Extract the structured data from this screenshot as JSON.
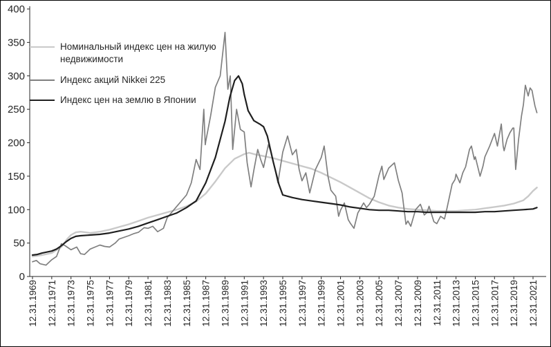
{
  "chart_data": {
    "type": "line",
    "title": "",
    "grid": "off",
    "legend_position": "top-left-inside",
    "axis_color": "#262626",
    "y_axis": {
      "ticks": [
        0,
        50,
        100,
        150,
        200,
        250,
        300,
        350,
        400
      ],
      "range": [
        0,
        400
      ]
    },
    "x_axis": {
      "tick_labels": [
        "12.31.1969",
        "12.31.1971",
        "12.31.1973",
        "12.31.1975",
        "12.31.1977",
        "12.31.1979",
        "12.31.1981",
        "12.31.1983",
        "12.31.1985",
        "12.31.1987",
        "12.31.1989",
        "12.31.1991",
        "12.31.1993",
        "12.31.1995",
        "12.31.1997",
        "12.31.1999",
        "12.31.2001",
        "12.31.2003",
        "12.31.2005",
        "12.31.2007",
        "12.31.2009",
        "12.31.2011",
        "12.31.2013",
        "12.31.2015",
        "12.31.2017",
        "12.31.2019",
        "12.31.2021"
      ],
      "years_between_ticks": 2
    },
    "series": [
      {
        "name": "Номинальный индекс цен на жилую недвижимости",
        "color": "#c9c9c9",
        "width": 2.4,
        "points": [
          [
            0,
            30
          ],
          [
            1,
            32
          ],
          [
            2,
            35
          ],
          [
            3,
            44
          ],
          [
            3.6,
            56
          ],
          [
            4,
            62
          ],
          [
            4.5,
            66
          ],
          [
            5,
            67
          ],
          [
            5.5,
            66
          ],
          [
            6,
            65
          ],
          [
            7,
            67
          ],
          [
            8,
            70
          ],
          [
            9,
            74
          ],
          [
            10,
            78
          ],
          [
            11,
            83
          ],
          [
            12,
            88
          ],
          [
            13,
            92
          ],
          [
            14,
            96
          ],
          [
            15,
            100
          ],
          [
            16,
            105
          ],
          [
            17,
            112
          ],
          [
            18,
            124
          ],
          [
            19,
            142
          ],
          [
            20,
            162
          ],
          [
            21,
            176
          ],
          [
            22,
            183
          ],
          [
            22.5,
            185
          ],
          [
            23,
            183
          ],
          [
            24,
            180
          ],
          [
            25,
            177
          ],
          [
            26,
            173
          ],
          [
            27,
            169
          ],
          [
            28,
            165
          ],
          [
            29,
            161
          ],
          [
            30,
            155
          ],
          [
            31,
            148
          ],
          [
            32,
            141
          ],
          [
            33,
            133
          ],
          [
            34,
            125
          ],
          [
            35,
            117
          ],
          [
            36,
            111
          ],
          [
            37,
            106
          ],
          [
            38,
            103
          ],
          [
            39,
            101
          ],
          [
            40,
            100
          ],
          [
            41,
            99
          ],
          [
            42,
            98
          ],
          [
            43,
            98
          ],
          [
            44,
            98
          ],
          [
            45,
            99
          ],
          [
            46,
            100
          ],
          [
            47,
            102
          ],
          [
            48,
            104
          ],
          [
            49,
            106
          ],
          [
            50,
            109
          ],
          [
            51,
            114
          ],
          [
            51.5,
            120
          ],
          [
            52,
            128
          ],
          [
            52.4,
            133
          ]
        ]
      },
      {
        "name": "Индекс акций Nikkei 225",
        "color": "#7f7f7f",
        "width": 1.7,
        "points": [
          [
            0,
            22
          ],
          [
            0.4,
            24
          ],
          [
            0.8,
            19
          ],
          [
            1.4,
            17
          ],
          [
            2,
            25
          ],
          [
            2.5,
            30
          ],
          [
            3,
            49
          ],
          [
            3.4,
            46
          ],
          [
            4,
            40
          ],
          [
            4.6,
            44
          ],
          [
            5,
            34
          ],
          [
            5.4,
            33
          ],
          [
            6,
            41
          ],
          [
            6.5,
            44
          ],
          [
            7,
            47
          ],
          [
            7.5,
            45
          ],
          [
            8,
            44
          ],
          [
            8.6,
            50
          ],
          [
            9,
            56
          ],
          [
            10,
            61
          ],
          [
            10.5,
            64
          ],
          [
            11,
            66
          ],
          [
            11.6,
            73
          ],
          [
            12,
            72
          ],
          [
            12.5,
            75
          ],
          [
            13,
            67
          ],
          [
            13.6,
            72
          ],
          [
            14,
            88
          ],
          [
            15,
            105
          ],
          [
            16,
            122
          ],
          [
            16.5,
            140
          ],
          [
            17,
            175
          ],
          [
            17.4,
            160
          ],
          [
            17.8,
            250
          ],
          [
            17.95,
            197
          ],
          [
            18,
            202
          ],
          [
            18.5,
            240
          ],
          [
            19,
            283
          ],
          [
            19.5,
            300
          ],
          [
            20,
            365
          ],
          [
            20.3,
            280
          ],
          [
            20.55,
            300
          ],
          [
            20.8,
            190
          ],
          [
            21.2,
            250
          ],
          [
            21.6,
            220
          ],
          [
            22,
            216
          ],
          [
            22.3,
            170
          ],
          [
            22.7,
            134
          ],
          [
            23,
            159
          ],
          [
            23.4,
            190
          ],
          [
            23.7,
            175
          ],
          [
            24,
            163
          ],
          [
            24.5,
            197
          ],
          [
            24.8,
            185
          ],
          [
            25.2,
            160
          ],
          [
            25.5,
            140
          ],
          [
            26,
            186
          ],
          [
            26.5,
            210
          ],
          [
            27,
            182
          ],
          [
            27.4,
            190
          ],
          [
            27.7,
            160
          ],
          [
            28,
            143
          ],
          [
            28.4,
            155
          ],
          [
            28.8,
            125
          ],
          [
            29.4,
            160
          ],
          [
            30,
            178
          ],
          [
            30.3,
            195
          ],
          [
            30.7,
            150
          ],
          [
            31,
            129
          ],
          [
            31.5,
            120
          ],
          [
            31.8,
            90
          ],
          [
            32,
            99
          ],
          [
            32.4,
            110
          ],
          [
            32.8,
            85
          ],
          [
            33,
            80
          ],
          [
            33.4,
            72
          ],
          [
            33.8,
            95
          ],
          [
            34,
            100
          ],
          [
            34.4,
            110
          ],
          [
            34.7,
            103
          ],
          [
            35,
            108
          ],
          [
            35.5,
            120
          ],
          [
            36,
            151
          ],
          [
            36.3,
            165
          ],
          [
            36.5,
            145
          ],
          [
            37,
            162
          ],
          [
            37.6,
            170
          ],
          [
            38,
            144
          ],
          [
            38.4,
            125
          ],
          [
            38.8,
            78
          ],
          [
            39,
            83
          ],
          [
            39.3,
            75
          ],
          [
            39.8,
            100
          ],
          [
            40.3,
            108
          ],
          [
            40.7,
            92
          ],
          [
            41,
            96
          ],
          [
            41.2,
            105
          ],
          [
            41.7,
            82
          ],
          [
            42,
            79
          ],
          [
            42.4,
            90
          ],
          [
            42.8,
            86
          ],
          [
            43,
            98
          ],
          [
            43.4,
            125
          ],
          [
            43.6,
            138
          ],
          [
            43.9,
            145
          ],
          [
            44,
            153
          ],
          [
            44.4,
            140
          ],
          [
            44.7,
            155
          ],
          [
            45,
            164
          ],
          [
            45.4,
            190
          ],
          [
            45.6,
            195
          ],
          [
            45.9,
            175
          ],
          [
            46,
            179
          ],
          [
            46.5,
            150
          ],
          [
            46.8,
            165
          ],
          [
            47,
            179
          ],
          [
            47.5,
            195
          ],
          [
            48,
            214
          ],
          [
            48.3,
            195
          ],
          [
            48.7,
            228
          ],
          [
            48.9,
            195
          ],
          [
            49,
            188
          ],
          [
            49.3,
            205
          ],
          [
            49.6,
            215
          ],
          [
            49.9,
            222
          ],
          [
            50,
            222
          ],
          [
            50.2,
            160
          ],
          [
            50.5,
            205
          ],
          [
            50.8,
            240
          ],
          [
            51,
            257
          ],
          [
            51.2,
            286
          ],
          [
            51.5,
            270
          ],
          [
            51.7,
            282
          ],
          [
            51.9,
            278
          ],
          [
            52,
            270
          ],
          [
            52.2,
            255
          ],
          [
            52.4,
            245
          ]
        ]
      },
      {
        "name": "Индекс цен на землю в Японии",
        "color": "#1f1f1f",
        "width": 2.2,
        "points": [
          [
            0,
            32
          ],
          [
            0.5,
            33
          ],
          [
            1,
            35
          ],
          [
            2,
            38
          ],
          [
            2.5,
            41
          ],
          [
            3,
            46
          ],
          [
            3.5,
            52
          ],
          [
            4,
            57
          ],
          [
            4.5,
            60
          ],
          [
            5,
            61
          ],
          [
            6,
            62
          ],
          [
            7,
            63
          ],
          [
            8,
            65
          ],
          [
            9,
            68
          ],
          [
            10,
            71
          ],
          [
            11,
            75
          ],
          [
            12,
            80
          ],
          [
            13,
            85
          ],
          [
            14,
            90
          ],
          [
            15,
            95
          ],
          [
            16,
            103
          ],
          [
            17,
            113
          ],
          [
            18,
            140
          ],
          [
            19,
            178
          ],
          [
            20,
            232
          ],
          [
            20.5,
            268
          ],
          [
            21,
            293
          ],
          [
            21.4,
            300
          ],
          [
            21.8,
            288
          ],
          [
            22,
            272
          ],
          [
            22.4,
            248
          ],
          [
            23,
            233
          ],
          [
            23.6,
            228
          ],
          [
            24,
            224
          ],
          [
            24.4,
            210
          ],
          [
            25,
            172
          ],
          [
            25.6,
            138
          ],
          [
            26,
            122
          ],
          [
            26.5,
            120
          ],
          [
            27,
            118
          ],
          [
            28,
            115
          ],
          [
            29,
            113
          ],
          [
            30,
            111
          ],
          [
            31,
            109
          ],
          [
            32,
            107
          ],
          [
            33,
            104
          ],
          [
            34,
            102
          ],
          [
            35,
            100
          ],
          [
            36,
            99
          ],
          [
            37,
            99
          ],
          [
            38,
            98
          ],
          [
            39,
            97
          ],
          [
            40,
            97
          ],
          [
            41,
            96
          ],
          [
            42,
            96
          ],
          [
            43,
            96
          ],
          [
            44,
            96
          ],
          [
            45,
            96
          ],
          [
            46,
            96
          ],
          [
            47,
            97
          ],
          [
            48,
            97
          ],
          [
            49,
            98
          ],
          [
            50,
            99
          ],
          [
            51,
            100
          ],
          [
            52,
            101
          ],
          [
            52.4,
            103
          ]
        ]
      }
    ]
  }
}
